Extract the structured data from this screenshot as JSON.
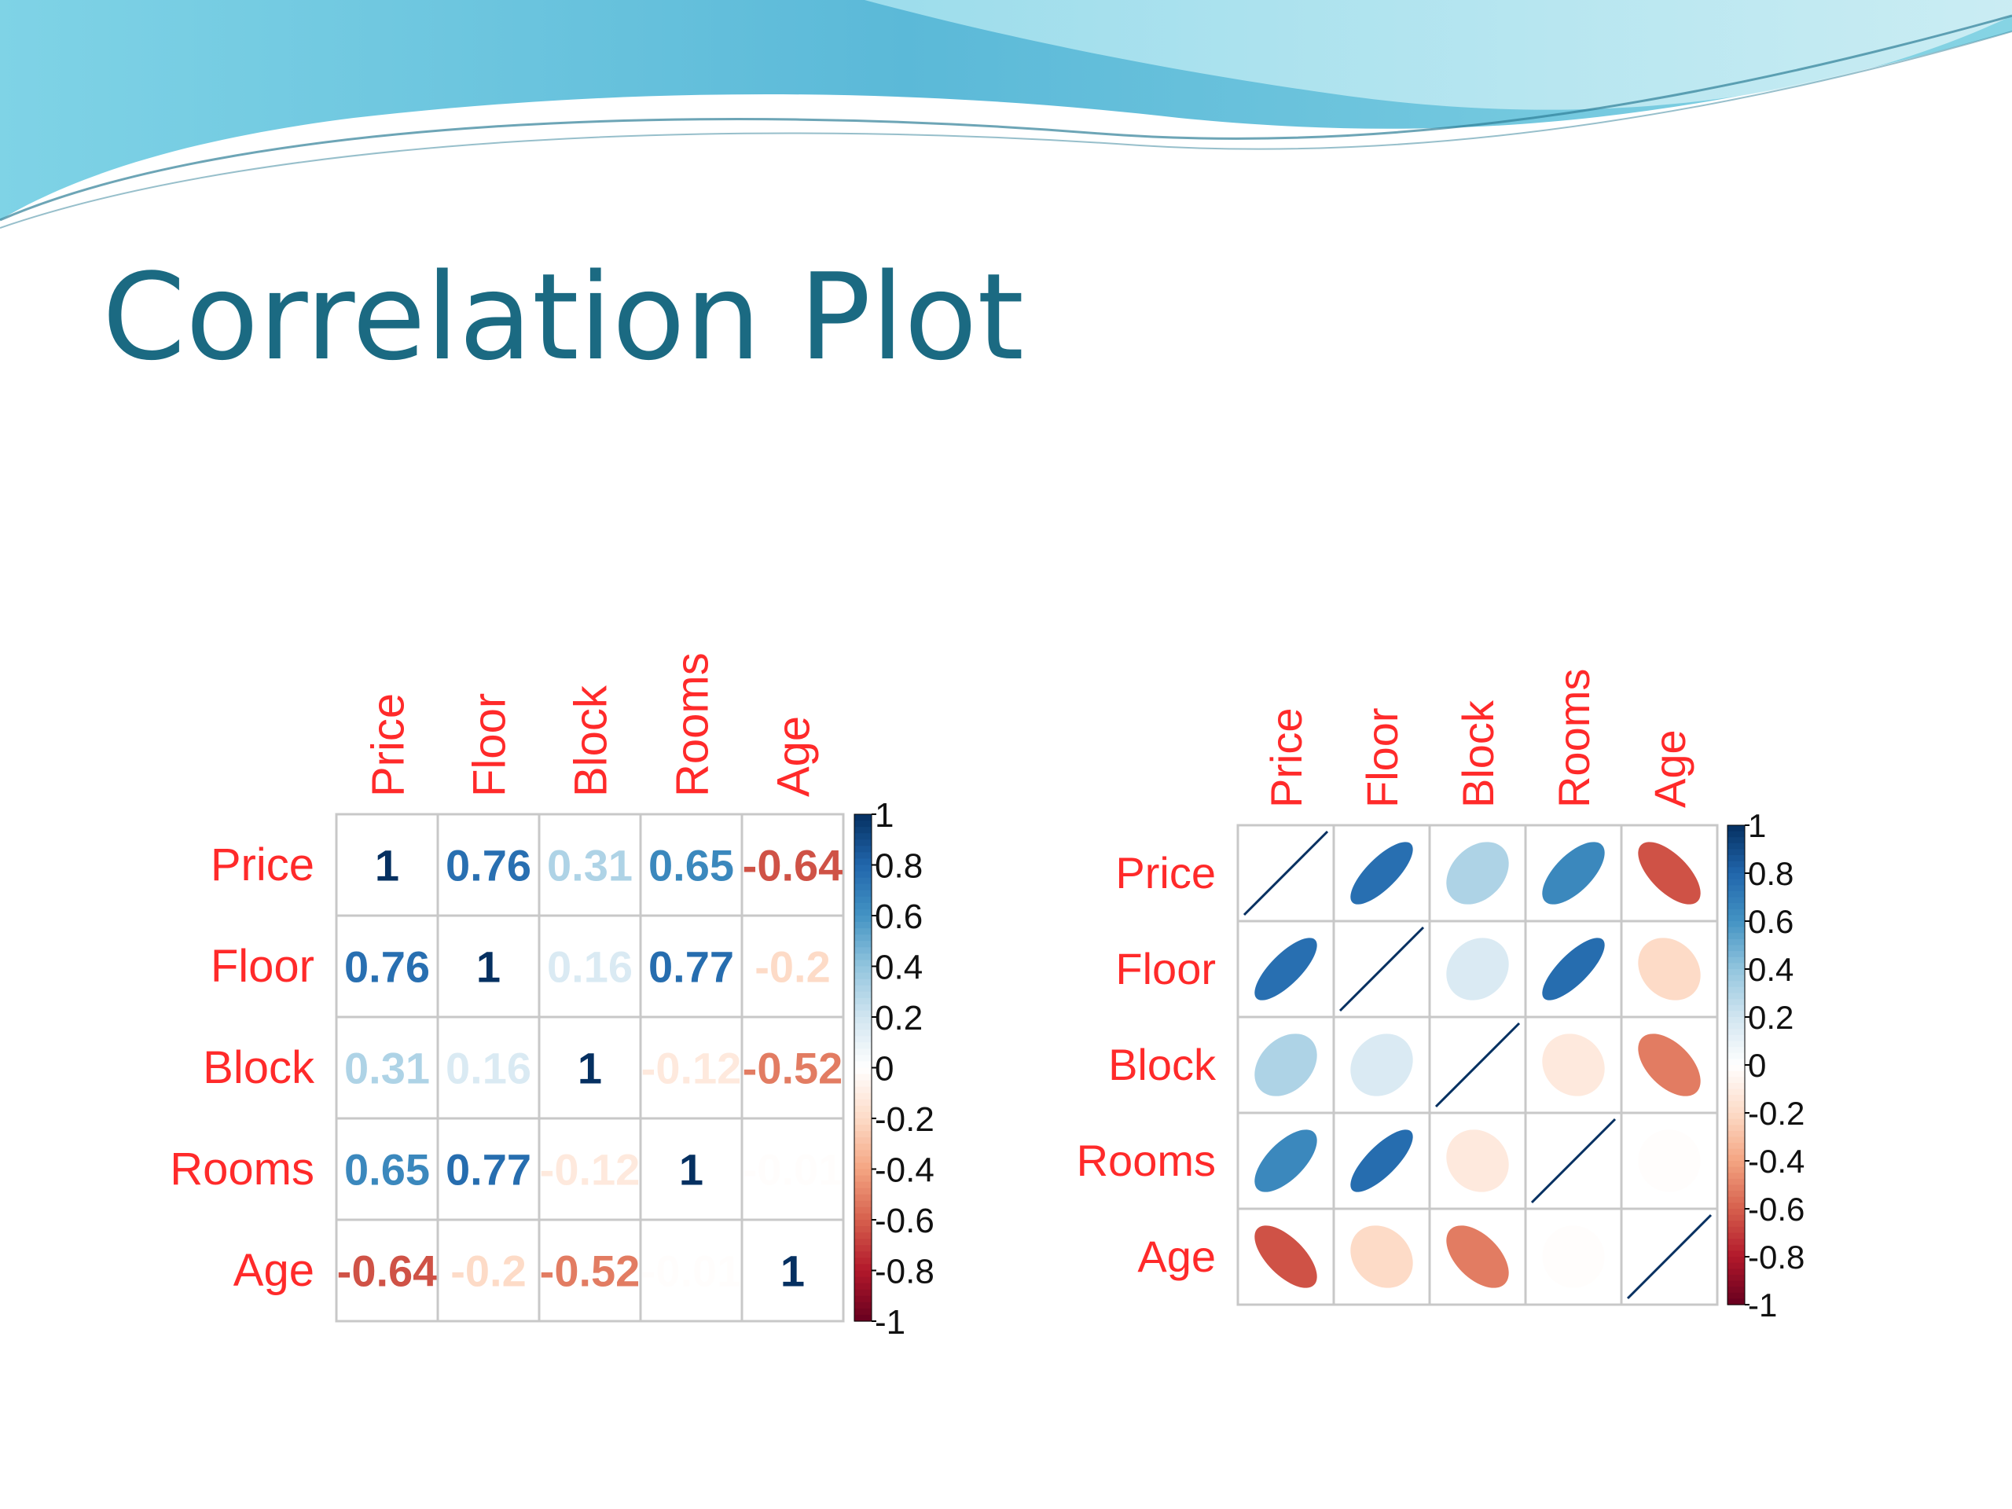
{
  "slide": {
    "title": "Correlation Plot"
  },
  "colors": {
    "title": "#1b6a82",
    "label": "#ff2a2a",
    "grid": "#c8c8c8",
    "banner_light": "#b8e4f0",
    "banner_dark": "#4fb6d6"
  },
  "chart_data": [
    {
      "type": "heatmap",
      "method": "number",
      "variables": [
        "Price",
        "Floor",
        "Block",
        "Rooms",
        "Age"
      ],
      "matrix": [
        [
          1,
          0.76,
          0.31,
          0.65,
          -0.64
        ],
        [
          0.76,
          1,
          0.16,
          0.77,
          -0.2
        ],
        [
          0.31,
          0.16,
          1,
          -0.12,
          -0.52
        ],
        [
          0.65,
          0.77,
          -0.12,
          1,
          -0.01
        ],
        [
          -0.64,
          -0.2,
          -0.52,
          -0.01,
          1
        ]
      ],
      "labels": [
        [
          "1",
          "0.76",
          "0.31",
          "0.65",
          "-0.64"
        ],
        [
          "0.76",
          "1",
          "0.16",
          "0.77",
          "-0.2"
        ],
        [
          "0.31",
          "0.16",
          "1",
          "-0.12",
          "-0.52"
        ],
        [
          "0.65",
          "0.77",
          "-0.12",
          "1",
          "-0.01"
        ],
        [
          "-0.64",
          "-0.2",
          "-0.52",
          "-0.01",
          "1"
        ]
      ],
      "colorbar": {
        "range": [
          -1,
          1
        ],
        "ticks": [
          "1",
          "0.8",
          "0.6",
          "0.4",
          "0.2",
          "0",
          "-0.2",
          "-0.4",
          "-0.6",
          "-0.8",
          "-1"
        ]
      }
    },
    {
      "type": "heatmap",
      "method": "ellipse",
      "variables": [
        "Price",
        "Floor",
        "Block",
        "Rooms",
        "Age"
      ],
      "matrix": [
        [
          1,
          0.76,
          0.31,
          0.65,
          -0.64
        ],
        [
          0.76,
          1,
          0.16,
          0.77,
          -0.2
        ],
        [
          0.31,
          0.16,
          1,
          -0.12,
          -0.52
        ],
        [
          0.65,
          0.77,
          -0.12,
          1,
          -0.01
        ],
        [
          -0.64,
          -0.2,
          -0.52,
          -0.01,
          1
        ]
      ],
      "colorbar": {
        "range": [
          -1,
          1
        ],
        "ticks": [
          "1",
          "0.8",
          "0.6",
          "0.4",
          "0.2",
          "0",
          "-0.2",
          "-0.4",
          "-0.6",
          "-0.8",
          "-1"
        ]
      }
    }
  ]
}
